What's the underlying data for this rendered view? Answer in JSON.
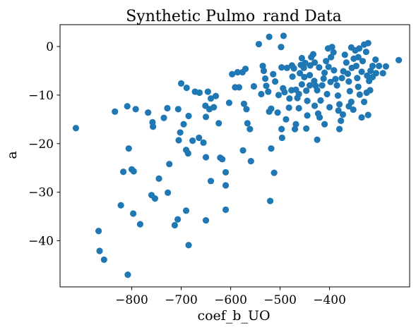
{
  "chart_data": {
    "type": "scatter",
    "title": "Synthetic Pulmo_rand Data",
    "xlabel": "coef_b_UO",
    "ylabel": "a",
    "xlim": [
      -945,
      -238
    ],
    "ylim": [
      -49.5,
      4.5
    ],
    "xticks": [
      -800,
      -700,
      -600,
      -500,
      -400
    ],
    "xtick_labels": [
      "−800",
      "−700",
      "−600",
      "−500",
      "−400"
    ],
    "yticks": [
      0,
      -10,
      -20,
      -30,
      -40
    ],
    "ytick_labels": [
      "0",
      "−10",
      "−20",
      "−30",
      "−40"
    ],
    "grid": false,
    "point_color": "#1f77b4",
    "series": [
      {
        "points": [
          [
            -913,
            -16.8
          ],
          [
            -834,
            -13.4
          ],
          [
            -809,
            -12.3
          ],
          [
            -792,
            -12.9
          ],
          [
            -767,
            -13.6
          ],
          [
            -758,
            -15.6
          ],
          [
            -757,
            -16.5
          ],
          [
            -735,
            -14.7
          ],
          [
            -728,
            -12.7
          ],
          [
            -706,
            -12.9
          ],
          [
            -685,
            -14.3
          ],
          [
            -700,
            -7.6
          ],
          [
            -689,
            -8.5
          ],
          [
            -672,
            -9.3
          ],
          [
            -663,
            -9.5
          ],
          [
            -646,
            -9.3
          ],
          [
            -640,
            -10.7
          ],
          [
            -630,
            -10.2
          ],
          [
            -651,
            -12.2
          ],
          [
            -643,
            -12.9
          ],
          [
            -634,
            -12.5
          ],
          [
            -624,
            -15.8
          ],
          [
            -650,
            -14.5
          ],
          [
            -695,
            -16.0
          ],
          [
            -702,
            -17.7
          ],
          [
            -705,
            -19.3
          ],
          [
            -690,
            -21.3
          ],
          [
            -677,
            -19.4
          ],
          [
            -664,
            -18.8
          ],
          [
            -655,
            -19.8
          ],
          [
            -686,
            -22.0
          ],
          [
            -650,
            -22.8
          ],
          [
            -640,
            -27.7
          ],
          [
            -621,
            -22.9
          ],
          [
            -617,
            -23.2
          ],
          [
            -610,
            -25.9
          ],
          [
            -610,
            -28.6
          ],
          [
            -610,
            -33.6
          ],
          [
            -650,
            -35.8
          ],
          [
            -690,
            -33.8
          ],
          [
            -707,
            -35.6
          ],
          [
            -713,
            -36.8
          ],
          [
            -727,
            -30.1
          ],
          [
            -724,
            -24.2
          ],
          [
            -745,
            -27.2
          ],
          [
            -753,
            -31.3
          ],
          [
            -760,
            -30.6
          ],
          [
            -783,
            -36.6
          ],
          [
            -797,
            -34.4
          ],
          [
            -796,
            -25.7
          ],
          [
            -800,
            -25.3
          ],
          [
            -806,
            -21.0
          ],
          [
            -817,
            -25.8
          ],
          [
            -822,
            -32.7
          ],
          [
            -867,
            -38.0
          ],
          [
            -865,
            -42.1
          ],
          [
            -856,
            -43.9
          ],
          [
            -808,
            -47.0
          ],
          [
            -685,
            -40.9
          ],
          [
            -603,
            -11.6
          ],
          [
            -597,
            -5.7
          ],
          [
            -591,
            -8.4
          ],
          [
            -583,
            -8.4
          ],
          [
            -586,
            -5.3
          ],
          [
            -576,
            -5.3
          ],
          [
            -570,
            -4.6
          ],
          [
            -573,
            -11.8
          ],
          [
            -568,
            -12.9
          ],
          [
            -566,
            -15.8
          ],
          [
            -561,
            -17.0
          ],
          [
            -575,
            -21.4
          ],
          [
            -559,
            -23.6
          ],
          [
            -553,
            -8.2
          ],
          [
            -543,
            0.5
          ],
          [
            -538,
            -9.8
          ],
          [
            -535,
            -4.0
          ],
          [
            -533,
            -5.0
          ],
          [
            -530,
            -6.6
          ],
          [
            -528,
            -8.1
          ],
          [
            -524,
            -9.3
          ],
          [
            -522,
            2.0
          ],
          [
            -518,
            -12.8
          ],
          [
            -522,
            -13.4
          ],
          [
            -518,
            -21.0
          ],
          [
            -520,
            -31.8
          ],
          [
            -512,
            -26.0
          ],
          [
            -514,
            -5.7
          ],
          [
            -510,
            -7.2
          ],
          [
            -505,
            -13.6
          ],
          [
            -503,
            -10.0
          ],
          [
            -498,
            -0.1
          ],
          [
            -493,
            2.2
          ],
          [
            -497,
            -4.3
          ],
          [
            -494,
            -8.6
          ],
          [
            -491,
            -9.4
          ],
          [
            -497,
            -17.0
          ],
          [
            -496,
            -18.8
          ],
          [
            -488,
            -15.0
          ],
          [
            -482,
            -12.6
          ],
          [
            -477,
            -9.0
          ],
          [
            -476,
            -3.9
          ],
          [
            -472,
            -4.5
          ],
          [
            -468,
            -16.0
          ],
          [
            -470,
            -17.0
          ],
          [
            -462,
            -12.7
          ],
          [
            -462,
            -9.8
          ],
          [
            -460,
            -5.5
          ],
          [
            -458,
            -3.8
          ],
          [
            -456,
            -2.4
          ],
          [
            -452,
            -4.4
          ],
          [
            -449,
            -3.4
          ],
          [
            -451,
            -6.3
          ],
          [
            -447,
            -9.1
          ],
          [
            -445,
            -11.2
          ],
          [
            -445,
            -14.2
          ],
          [
            -447,
            -16.9
          ],
          [
            -440,
            -8.0
          ],
          [
            -440,
            -5.9
          ],
          [
            -437,
            -2.2
          ],
          [
            -433,
            -1.6
          ],
          [
            -430,
            -3.3
          ],
          [
            -431,
            -7.1
          ],
          [
            -428,
            -8.1
          ],
          [
            -425,
            -9.0
          ],
          [
            -423,
            -13.8
          ],
          [
            -420,
            -14.6
          ],
          [
            -418,
            -11.1
          ],
          [
            -415,
            -8.0
          ],
          [
            -412,
            -6.6
          ],
          [
            -410,
            -5.4
          ],
          [
            -407,
            -3.0
          ],
          [
            -403,
            -0.4
          ],
          [
            -402,
            -4.2
          ],
          [
            -397,
            -2.2
          ],
          [
            -395,
            -0.1
          ],
          [
            -392,
            -1.2
          ],
          [
            -391,
            -4.9
          ],
          [
            -388,
            -6.7
          ],
          [
            -385,
            -8.0
          ],
          [
            -383,
            -10.1
          ],
          [
            -382,
            -13.2
          ],
          [
            -380,
            -11.9
          ],
          [
            -377,
            -15.3
          ],
          [
            -373,
            -14.0
          ],
          [
            -375,
            -6.5
          ],
          [
            -372,
            -5.1
          ],
          [
            -369,
            -1.7
          ],
          [
            -366,
            -3.3
          ],
          [
            -363,
            -5.6
          ],
          [
            -361,
            -7.2
          ],
          [
            -359,
            -9.2
          ],
          [
            -356,
            -11.4
          ],
          [
            -352,
            -13.0
          ],
          [
            -355,
            -4.4
          ],
          [
            -351,
            -2.5
          ],
          [
            -348,
            -0.8
          ],
          [
            -346,
            -4.0
          ],
          [
            -344,
            -6.5
          ],
          [
            -342,
            -8.3
          ],
          [
            -339,
            -9.9
          ],
          [
            -335,
            -5.2
          ],
          [
            -333,
            -3.0
          ],
          [
            -330,
            0.4
          ],
          [
            -326,
            -1.1
          ],
          [
            -324,
            -6.0
          ],
          [
            -320,
            -7.1
          ],
          [
            -317,
            -5.0
          ],
          [
            -313,
            -4.0
          ],
          [
            -307,
            -2.7
          ],
          [
            -300,
            -4.0
          ],
          [
            -322,
            0.7
          ],
          [
            -325,
            -9.5
          ],
          [
            -330,
            -11.4
          ],
          [
            -335,
            -14.6
          ],
          [
            -322,
            -14.1
          ],
          [
            -475,
            -6.2
          ],
          [
            -468,
            -8.9
          ],
          [
            -465,
            -10.6
          ],
          [
            -430,
            -12.2
          ],
          [
            -425,
            -19.2
          ],
          [
            -380,
            -17.0
          ],
          [
            -410,
            -16.0
          ],
          [
            -405,
            -9.8
          ],
          [
            -398,
            -7.3
          ],
          [
            -361,
            -12.3
          ],
          [
            -342,
            -2.2
          ],
          [
            -313,
            -6.3
          ],
          [
            -306,
            -5.5
          ],
          [
            -260,
            -2.8
          ],
          [
            -286,
            -4.1
          ],
          [
            -292,
            -5.5
          ],
          [
            -318,
            -9.0
          ],
          [
            -340,
            -0.4
          ],
          [
            -356,
            -0.2
          ],
          [
            -400,
            -12.5
          ],
          [
            -486,
            -4.4
          ],
          [
            -481,
            -10.7
          ],
          [
            -456,
            -7.8
          ],
          [
            -439,
            -3.9
          ],
          [
            -421,
            -4.3
          ]
        ]
      }
    ]
  }
}
